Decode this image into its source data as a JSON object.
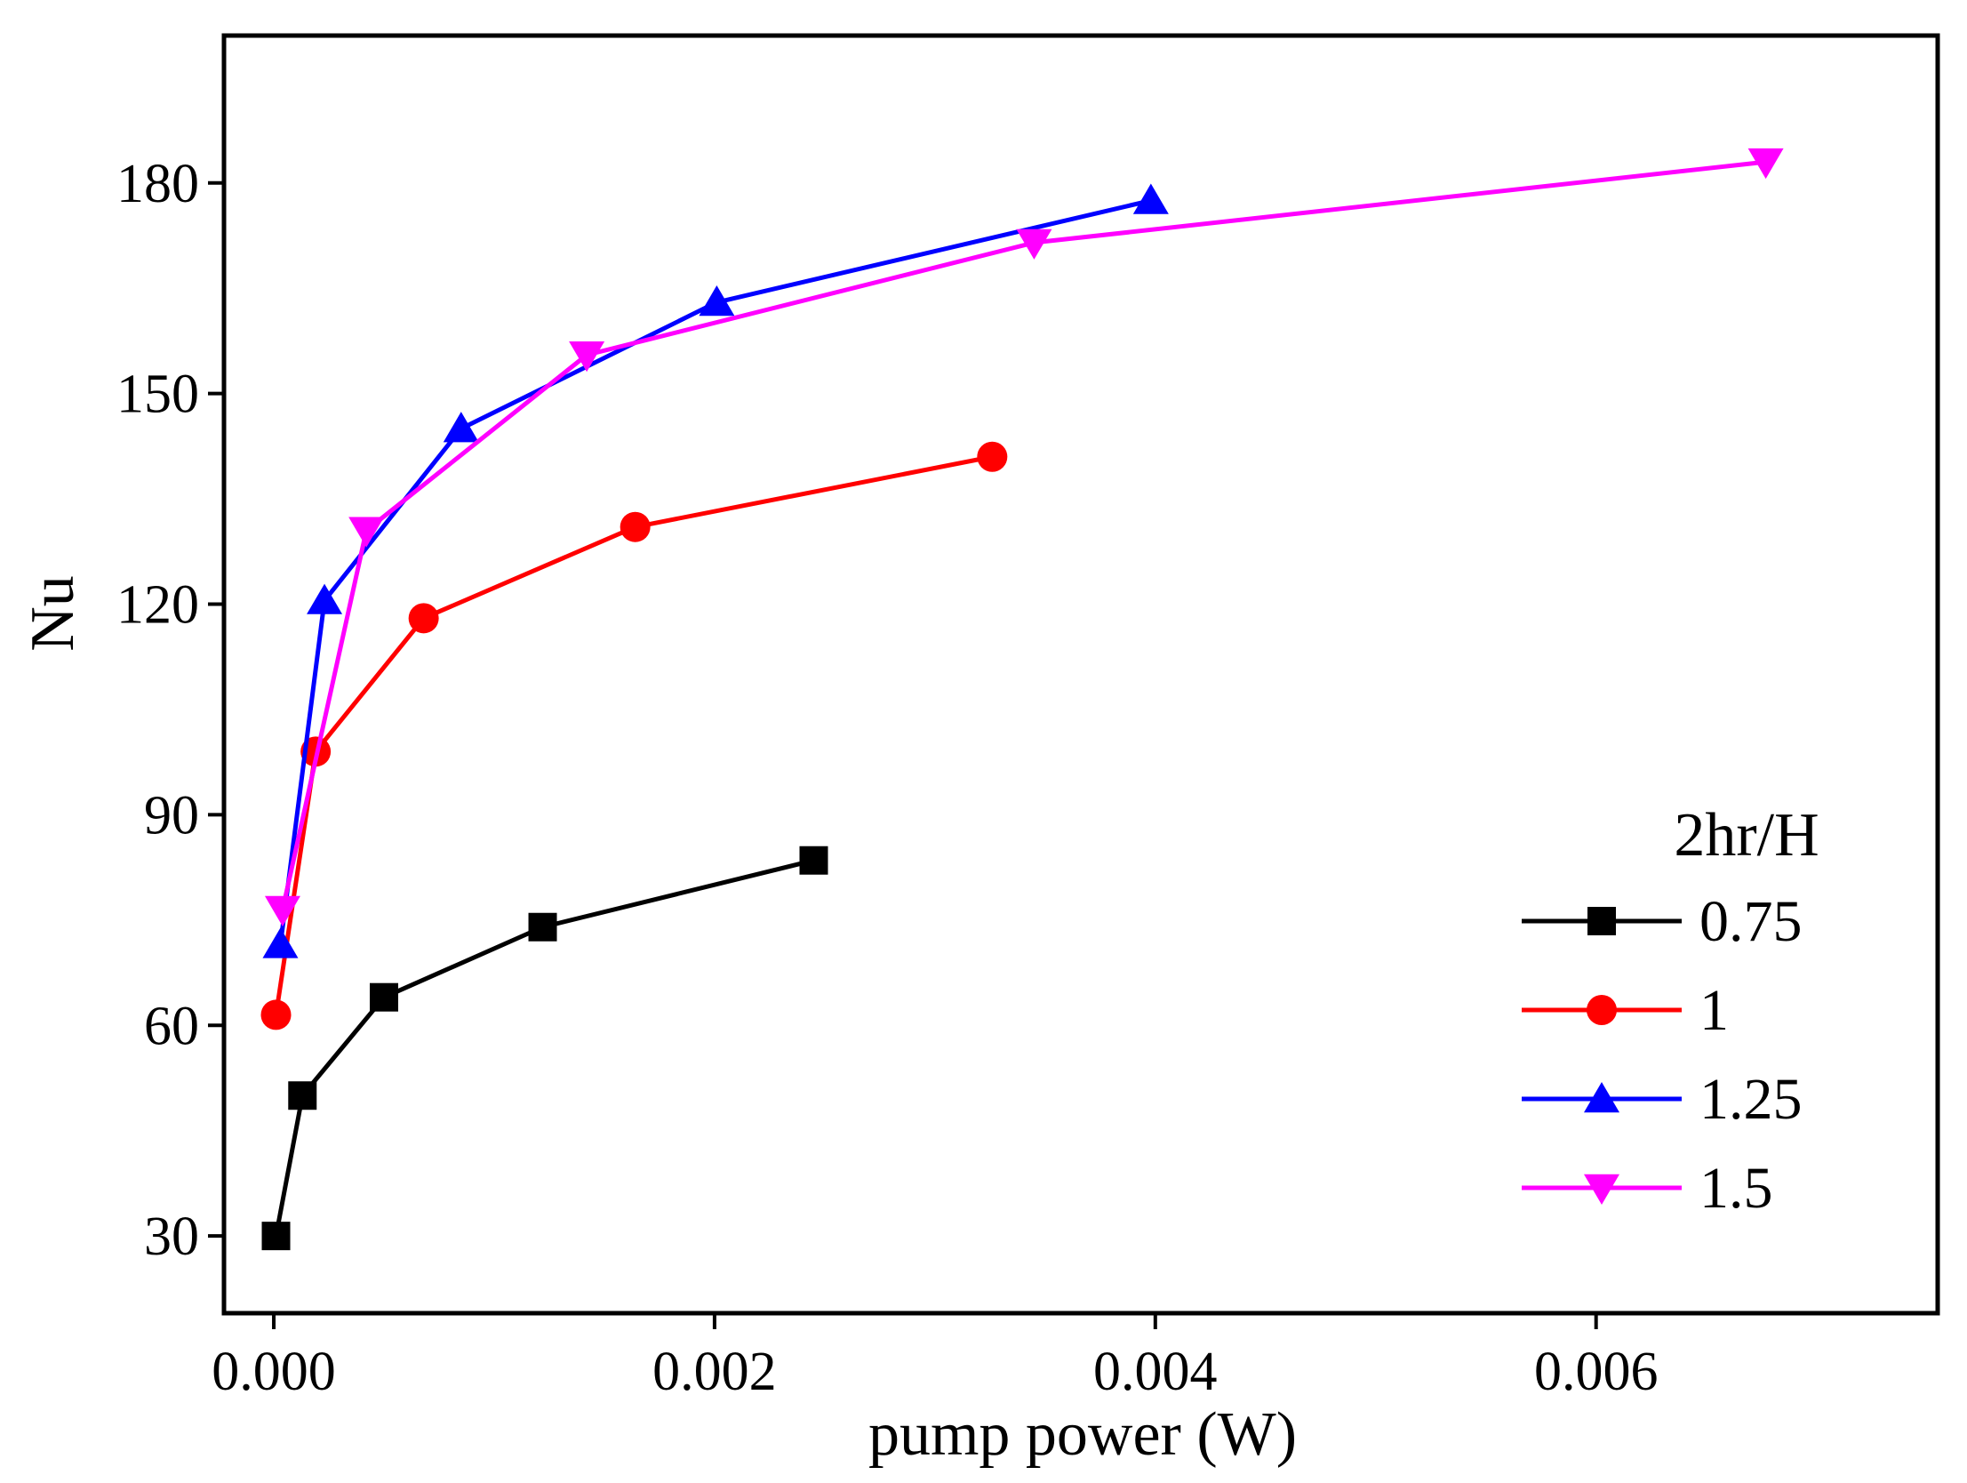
{
  "chart_data": {
    "type": "line",
    "title": "",
    "xlabel": "pump power (W)",
    "ylabel": "Nu",
    "xlim": [
      -0.000226,
      0.00755
    ],
    "ylim": [
      19.0,
      201.0
    ],
    "xticks": [
      0.0,
      0.002,
      0.004,
      0.006
    ],
    "xtick_labels": [
      "0.000",
      "0.002",
      "0.004",
      "0.006"
    ],
    "yticks": [
      30,
      60,
      90,
      120,
      150,
      180
    ],
    "ytick_labels": [
      "30",
      "60",
      "90",
      "120",
      "150",
      "180"
    ],
    "grid": false,
    "legend": {
      "title": "2hr/H",
      "position": "lower-right"
    },
    "series": [
      {
        "name": "0.75",
        "color": "#000000",
        "marker": "square",
        "x": [
          1e-05,
          0.00013,
          0.0005,
          0.00122,
          0.00245
        ],
        "y": [
          30,
          50,
          64,
          74,
          83.5
        ]
      },
      {
        "name": "1",
        "color": "#ff0000",
        "marker": "circle",
        "x": [
          1e-05,
          0.00019,
          0.00068,
          0.00164,
          0.00326
        ],
        "y": [
          61.5,
          99,
          118,
          131,
          141
        ]
      },
      {
        "name": "1.25",
        "color": "#0000ff",
        "marker": "triangle-up",
        "x": [
          3e-05,
          0.00023,
          0.00085,
          0.00201,
          0.00398
        ],
        "y": [
          71.5,
          120.5,
          145,
          163,
          177.5
        ]
      },
      {
        "name": "1.5",
        "color": "#ff00ff",
        "marker": "triangle-down",
        "x": [
          4e-05,
          0.00042,
          0.00142,
          0.00345,
          0.00677
        ],
        "y": [
          76.5,
          130.5,
          155.5,
          171.5,
          183
        ]
      }
    ]
  }
}
